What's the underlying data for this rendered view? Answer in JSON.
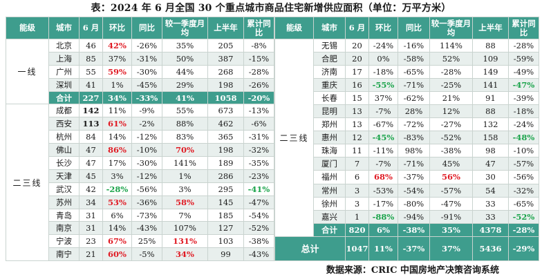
{
  "title": "表：2024 年 6 月全国 30 个重点城市商品住宅新增供应面积（单位：万平方米）",
  "headers": [
    "能级",
    "城市",
    "6 月",
    "环比",
    "同比",
    "较一季度月均",
    "上半年",
    "累计同比"
  ],
  "left": {
    "tier1_label": "一线",
    "tier1_rows": [
      {
        "city": "北京",
        "june": "46",
        "mom": "42%",
        "yoy": "-26%",
        "vsq1": "35%",
        "h1": "205",
        "cum": "-8%",
        "mom_c": "red"
      },
      {
        "city": "上海",
        "june": "85",
        "mom": "37%",
        "yoy": "-31%",
        "vsq1": "50%",
        "h1": "387",
        "cum": "-15%"
      },
      {
        "city": "广州",
        "june": "55",
        "mom": "59%",
        "yoy": "-30%",
        "vsq1": "44%",
        "h1": "268",
        "cum": "-28%",
        "mom_c": "red"
      },
      {
        "city": "深圳",
        "june": "41",
        "mom": "1%",
        "yoy": "-45%",
        "vsq1": "29%",
        "h1": "198",
        "cum": "-26%"
      }
    ],
    "tier1_total": {
      "city": "合计",
      "june": "227",
      "mom": "34%",
      "yoy": "-33%",
      "vsq1": "41%",
      "h1": "1058",
      "cum": "-20%"
    },
    "tier23_label": "二三线",
    "tier23_rows": [
      {
        "city": "成都",
        "june": "142",
        "mom": "11%",
        "yoy": "-9%",
        "vsq1": "55%",
        "h1": "673",
        "cum": "-13%",
        "june_c": "bold"
      },
      {
        "city": "西安",
        "june": "113",
        "mom": "61%",
        "yoy": "-2%",
        "vsq1": "88%",
        "h1": "462",
        "cum": "-6%",
        "june_c": "bold",
        "mom_c": "red"
      },
      {
        "city": "杭州",
        "june": "84",
        "mom": "14%",
        "yoy": "-12%",
        "vsq1": "83%",
        "h1": "365",
        "cum": "-31%"
      },
      {
        "city": "佛山",
        "june": "47",
        "mom": "86%",
        "yoy": "-10%",
        "vsq1": "70%",
        "h1": "198",
        "cum": "-32%",
        "mom_c": "red",
        "vsq1_c": "red"
      },
      {
        "city": "长沙",
        "june": "47",
        "mom": "17%",
        "yoy": "-30%",
        "vsq1": "141%",
        "h1": "189",
        "cum": "-35%"
      },
      {
        "city": "天津",
        "june": "45",
        "mom": "3%",
        "yoy": "-12%",
        "vsq1": "1%",
        "h1": "286",
        "cum": "-23%"
      },
      {
        "city": "武汉",
        "june": "42",
        "mom": "-28%",
        "yoy": "-56%",
        "vsq1": "3%",
        "h1": "295",
        "cum": "-41%",
        "mom_c": "green",
        "cum_c": "green"
      },
      {
        "city": "苏州",
        "june": "34",
        "mom": "53%",
        "yoy": "-36%",
        "vsq1": "58%",
        "h1": "145",
        "cum": "-47%",
        "mom_c": "red",
        "vsq1_c": "red"
      },
      {
        "city": "青岛",
        "june": "31",
        "mom": "6%",
        "yoy": "-73%",
        "vsq1": "7%",
        "h1": "185",
        "cum": "-54%"
      },
      {
        "city": "南京",
        "june": "31",
        "mom": "14%",
        "yoy": "-43%",
        "vsq1": "107%",
        "h1": "127",
        "cum": "-52%"
      },
      {
        "city": "宁波",
        "june": "23",
        "mom": "67%",
        "yoy": "25%",
        "vsq1": "131%",
        "h1": "103",
        "cum": "-38%",
        "mom_c": "red",
        "vsq1_c": "red"
      },
      {
        "city": "南宁",
        "june": "21",
        "mom": "60%",
        "yoy": "-5%",
        "vsq1": "34%",
        "h1": "99",
        "cum": "-43%",
        "mom_c": "red",
        "vsq1_c": "red"
      }
    ]
  },
  "right": {
    "tier23_label": "二三线",
    "rows": [
      {
        "city": "无锡",
        "june": "20",
        "mom": "-24%",
        "yoy": "-16%",
        "vsq1": "114%",
        "h1": "88",
        "cum": "-28%"
      },
      {
        "city": "合肥",
        "june": "20",
        "mom": "0%",
        "yoy": "-58%",
        "vsq1": "52%",
        "h1": "109",
        "cum": "-59%"
      },
      {
        "city": "济南",
        "june": "17",
        "mom": "-18%",
        "yoy": "-65%",
        "vsq1": "-28%",
        "h1": "149",
        "cum": "-49%"
      },
      {
        "city": "重庆",
        "june": "16",
        "mom": "-55%",
        "yoy": "-71%",
        "vsq1": "-25%",
        "h1": "141",
        "cum": "-47%",
        "mom_c": "green",
        "cum_c": "green"
      },
      {
        "city": "长春",
        "june": "15",
        "mom": "37%",
        "yoy": "-62%",
        "vsq1": "21%",
        "h1": "91",
        "cum": "-39%"
      },
      {
        "city": "昆明",
        "june": "13",
        "mom": "-7%",
        "yoy": "28%",
        "vsq1": "12%",
        "h1": "88",
        "cum": "-18%"
      },
      {
        "city": "郑州",
        "june": "13",
        "mom": "-67%",
        "yoy": "-72%",
        "vsq1": "-27%",
        "h1": "132",
        "cum": "-24%"
      },
      {
        "city": "惠州",
        "june": "12",
        "mom": "-45%",
        "yoy": "-83%",
        "vsq1": "-52%",
        "h1": "158",
        "cum": "-48%",
        "mom_c": "green",
        "cum_c": "green"
      },
      {
        "city": "珠海",
        "june": "11",
        "mom": "-11%",
        "yoy": "98%",
        "vsq1": "-38%",
        "h1": "98",
        "cum": "-10%"
      },
      {
        "city": "厦门",
        "june": "7",
        "mom": "-7%",
        "yoy": "-71%",
        "vsq1": "45%",
        "h1": "47",
        "cum": "-57%"
      },
      {
        "city": "福州",
        "june": "6",
        "mom": "68%",
        "yoy": "-37%",
        "vsq1": "56%",
        "h1": "30",
        "cum": "-56%",
        "mom_c": "red",
        "vsq1_c": "red"
      },
      {
        "city": "常州",
        "june": "3",
        "mom": "-53%",
        "yoy": "-54%",
        "vsq1": "-57%",
        "h1": "54",
        "cum": "-32%"
      },
      {
        "city": "徐州",
        "june": "3",
        "mom": "-17%",
        "yoy": "-80%",
        "vsq1": "-47%",
        "h1": "33",
        "cum": "-65%"
      },
      {
        "city": "嘉兴",
        "june": "1",
        "mom": "-88%",
        "yoy": "-94%",
        "vsq1": "-91%",
        "h1": "33",
        "cum": "-52%",
        "mom_c": "green",
        "cum_c": "green"
      }
    ],
    "tier23_total": {
      "city": "合计",
      "june": "820",
      "mom": "6%",
      "yoy": "-38%",
      "vsq1": "35%",
      "h1": "4378",
      "cum": "-28%"
    },
    "grand_total": {
      "label": "总计",
      "june": "1047",
      "mom": "11%",
      "yoy": "-37%",
      "vsq1": "37%",
      "h1": "5436",
      "cum": "-29%"
    }
  },
  "source": "数据来源：CRIC 中国房地产决策咨询系统",
  "colors": {
    "header": "#3e9d8d",
    "alt_row": "#e8efed",
    "up": "#e01b24",
    "down": "#1aa34a"
  }
}
